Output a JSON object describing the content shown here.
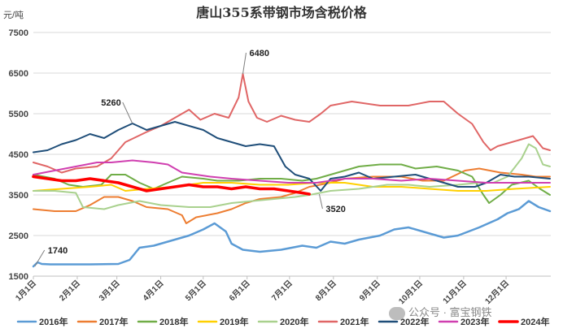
{
  "chart_data": {
    "type": "line",
    "title": "唐山355系带钢市场含税价格",
    "unit": "元/吨",
    "ylim": [
      1500,
      7500
    ],
    "yticks": [
      "1500",
      "2500",
      "3500",
      "4500",
      "5500",
      "6500",
      "7500"
    ],
    "categories": [
      "1月1日",
      "2月1日",
      "3月1日",
      "4月1日",
      "5月1日",
      "6月1日",
      "7月1日",
      "8月1日",
      "9月1日",
      "10月1日",
      "11月1日",
      "12月1日"
    ],
    "x_domain": [
      0,
      365
    ],
    "grid": true,
    "legend": "bottom",
    "annotations": [
      {
        "label": "1740",
        "x": 1,
        "y": 1740
      },
      {
        "label": "5260",
        "x": 70,
        "y": 5260
      },
      {
        "label": "6480",
        "x": 148,
        "y": 6480
      },
      {
        "label": "3520",
        "x": 202,
        "y": 3520
      }
    ],
    "series": [
      {
        "name": "2016年",
        "color": "#5b9bd5",
        "width": 2.5,
        "points": [
          [
            0,
            1740
          ],
          [
            3,
            1840
          ],
          [
            6,
            1800
          ],
          [
            12,
            1790
          ],
          [
            40,
            1790
          ],
          [
            60,
            1800
          ],
          [
            68,
            1900
          ],
          [
            75,
            2200
          ],
          [
            85,
            2250
          ],
          [
            100,
            2400
          ],
          [
            110,
            2500
          ],
          [
            120,
            2650
          ],
          [
            128,
            2800
          ],
          [
            136,
            2600
          ],
          [
            140,
            2300
          ],
          [
            148,
            2150
          ],
          [
            160,
            2100
          ],
          [
            175,
            2150
          ],
          [
            190,
            2250
          ],
          [
            200,
            2200
          ],
          [
            210,
            2350
          ],
          [
            220,
            2300
          ],
          [
            230,
            2400
          ],
          [
            245,
            2500
          ],
          [
            255,
            2650
          ],
          [
            265,
            2700
          ],
          [
            280,
            2550
          ],
          [
            290,
            2450
          ],
          [
            300,
            2500
          ],
          [
            315,
            2700
          ],
          [
            328,
            2900
          ],
          [
            335,
            3050
          ],
          [
            343,
            3150
          ],
          [
            350,
            3350
          ],
          [
            357,
            3200
          ],
          [
            365,
            3100
          ]
        ]
      },
      {
        "name": "2017年",
        "color": "#ed7d31",
        "width": 2,
        "points": [
          [
            0,
            3150
          ],
          [
            15,
            3100
          ],
          [
            30,
            3100
          ],
          [
            40,
            3250
          ],
          [
            50,
            3450
          ],
          [
            60,
            3450
          ],
          [
            70,
            3350
          ],
          [
            80,
            3200
          ],
          [
            95,
            3150
          ],
          [
            105,
            3000
          ],
          [
            108,
            2800
          ],
          [
            115,
            2950
          ],
          [
            130,
            3050
          ],
          [
            140,
            3150
          ],
          [
            150,
            3300
          ],
          [
            160,
            3400
          ],
          [
            175,
            3450
          ],
          [
            185,
            3550
          ],
          [
            195,
            3700
          ],
          [
            210,
            3800
          ],
          [
            220,
            3900
          ],
          [
            240,
            3950
          ],
          [
            260,
            3950
          ],
          [
            275,
            3850
          ],
          [
            290,
            3850
          ],
          [
            305,
            4100
          ],
          [
            315,
            4150
          ],
          [
            330,
            4050
          ],
          [
            345,
            4000
          ],
          [
            355,
            3950
          ],
          [
            365,
            3950
          ]
        ]
      },
      {
        "name": "2018年",
        "color": "#70ad47",
        "width": 2,
        "points": [
          [
            0,
            4000
          ],
          [
            15,
            3900
          ],
          [
            25,
            3750
          ],
          [
            35,
            3700
          ],
          [
            48,
            3750
          ],
          [
            55,
            4000
          ],
          [
            65,
            4000
          ],
          [
            75,
            3800
          ],
          [
            85,
            3650
          ],
          [
            95,
            3800
          ],
          [
            105,
            3950
          ],
          [
            120,
            3900
          ],
          [
            130,
            3850
          ],
          [
            145,
            3850
          ],
          [
            160,
            3900
          ],
          [
            175,
            3900
          ],
          [
            190,
            3850
          ],
          [
            200,
            3900
          ],
          [
            215,
            4050
          ],
          [
            230,
            4200
          ],
          [
            245,
            4250
          ],
          [
            260,
            4250
          ],
          [
            270,
            4150
          ],
          [
            285,
            4200
          ],
          [
            300,
            4100
          ],
          [
            310,
            3950
          ],
          [
            318,
            3500
          ],
          [
            322,
            3300
          ],
          [
            330,
            3500
          ],
          [
            338,
            3750
          ],
          [
            350,
            3850
          ],
          [
            358,
            3650
          ],
          [
            365,
            3500
          ]
        ]
      },
      {
        "name": "2019年",
        "color": "#ffd000",
        "width": 2,
        "points": [
          [
            0,
            3600
          ],
          [
            20,
            3650
          ],
          [
            40,
            3700
          ],
          [
            55,
            3750
          ],
          [
            65,
            3600
          ],
          [
            80,
            3650
          ],
          [
            100,
            3700
          ],
          [
            120,
            3800
          ],
          [
            140,
            3800
          ],
          [
            160,
            3750
          ],
          [
            180,
            3750
          ],
          [
            200,
            3800
          ],
          [
            220,
            3800
          ],
          [
            240,
            3700
          ],
          [
            260,
            3700
          ],
          [
            280,
            3650
          ],
          [
            300,
            3600
          ],
          [
            320,
            3600
          ],
          [
            340,
            3650
          ],
          [
            365,
            3700
          ]
        ]
      },
      {
        "name": "2020年",
        "color": "#a9d18e",
        "width": 2,
        "points": [
          [
            0,
            3600
          ],
          [
            15,
            3600
          ],
          [
            30,
            3550
          ],
          [
            35,
            3200
          ],
          [
            50,
            3150
          ],
          [
            60,
            3250
          ],
          [
            75,
            3350
          ],
          [
            90,
            3250
          ],
          [
            110,
            3200
          ],
          [
            125,
            3200
          ],
          [
            140,
            3300
          ],
          [
            155,
            3350
          ],
          [
            170,
            3400
          ],
          [
            185,
            3450
          ],
          [
            195,
            3500
          ],
          [
            210,
            3600
          ],
          [
            230,
            3650
          ],
          [
            250,
            3750
          ],
          [
            265,
            3750
          ],
          [
            280,
            3700
          ],
          [
            300,
            3750
          ],
          [
            315,
            3800
          ],
          [
            325,
            3800
          ],
          [
            335,
            3950
          ],
          [
            345,
            4400
          ],
          [
            350,
            4750
          ],
          [
            355,
            4650
          ],
          [
            360,
            4250
          ],
          [
            365,
            4200
          ]
        ]
      },
      {
        "name": "2021年",
        "color": "#e06666",
        "width": 2,
        "points": [
          [
            0,
            4300
          ],
          [
            10,
            4200
          ],
          [
            20,
            4050
          ],
          [
            30,
            4150
          ],
          [
            45,
            4200
          ],
          [
            55,
            4400
          ],
          [
            65,
            4800
          ],
          [
            80,
            5050
          ],
          [
            90,
            5200
          ],
          [
            100,
            5400
          ],
          [
            110,
            5600
          ],
          [
            118,
            5350
          ],
          [
            128,
            5500
          ],
          [
            138,
            5400
          ],
          [
            145,
            5900
          ],
          [
            148,
            6480
          ],
          [
            152,
            5800
          ],
          [
            158,
            5400
          ],
          [
            165,
            5300
          ],
          [
            175,
            5450
          ],
          [
            185,
            5350
          ],
          [
            195,
            5300
          ],
          [
            203,
            5500
          ],
          [
            210,
            5700
          ],
          [
            225,
            5800
          ],
          [
            245,
            5700
          ],
          [
            265,
            5700
          ],
          [
            280,
            5800
          ],
          [
            290,
            5800
          ],
          [
            300,
            5500
          ],
          [
            310,
            5250
          ],
          [
            318,
            4800
          ],
          [
            323,
            4600
          ],
          [
            328,
            4700
          ],
          [
            338,
            4800
          ],
          [
            348,
            4900
          ],
          [
            353,
            4950
          ],
          [
            360,
            4650
          ],
          [
            365,
            4600
          ]
        ]
      },
      {
        "name": "2022年",
        "color": "#1f4e79",
        "width": 2,
        "points": [
          [
            0,
            4550
          ],
          [
            10,
            4600
          ],
          [
            20,
            4750
          ],
          [
            30,
            4850
          ],
          [
            40,
            5000
          ],
          [
            50,
            4900
          ],
          [
            60,
            5100
          ],
          [
            70,
            5260
          ],
          [
            80,
            5100
          ],
          [
            90,
            5200
          ],
          [
            100,
            5300
          ],
          [
            110,
            5200
          ],
          [
            120,
            5100
          ],
          [
            130,
            4900
          ],
          [
            140,
            4800
          ],
          [
            150,
            4700
          ],
          [
            160,
            4750
          ],
          [
            170,
            4700
          ],
          [
            178,
            4200
          ],
          [
            185,
            4000
          ],
          [
            195,
            3900
          ],
          [
            203,
            3600
          ],
          [
            210,
            3900
          ],
          [
            220,
            3950
          ],
          [
            230,
            4050
          ],
          [
            240,
            3900
          ],
          [
            255,
            3950
          ],
          [
            270,
            4000
          ],
          [
            285,
            3850
          ],
          [
            300,
            3700
          ],
          [
            312,
            3700
          ],
          [
            320,
            3800
          ],
          [
            330,
            4000
          ],
          [
            340,
            3950
          ],
          [
            350,
            3950
          ],
          [
            365,
            3900
          ]
        ]
      },
      {
        "name": "2023年",
        "color": "#d03fb0",
        "width": 2,
        "points": [
          [
            0,
            4000
          ],
          [
            15,
            4100
          ],
          [
            30,
            4200
          ],
          [
            45,
            4300
          ],
          [
            55,
            4300
          ],
          [
            70,
            4350
          ],
          [
            85,
            4300
          ],
          [
            95,
            4250
          ],
          [
            105,
            4050
          ],
          [
            115,
            4000
          ],
          [
            125,
            3950
          ],
          [
            140,
            3900
          ],
          [
            160,
            3850
          ],
          [
            180,
            3800
          ],
          [
            200,
            3800
          ],
          [
            220,
            3900
          ],
          [
            240,
            3900
          ],
          [
            260,
            3850
          ],
          [
            280,
            3900
          ],
          [
            300,
            3850
          ],
          [
            320,
            3800
          ],
          [
            340,
            3800
          ],
          [
            365,
            3800
          ]
        ]
      },
      {
        "name": "2024年",
        "color": "#ff0000",
        "width": 3.6,
        "points": [
          [
            0,
            3950
          ],
          [
            10,
            3900
          ],
          [
            20,
            3850
          ],
          [
            30,
            3850
          ],
          [
            40,
            3900
          ],
          [
            50,
            3850
          ],
          [
            60,
            3800
          ],
          [
            70,
            3700
          ],
          [
            80,
            3600
          ],
          [
            90,
            3650
          ],
          [
            100,
            3700
          ],
          [
            110,
            3750
          ],
          [
            120,
            3700
          ],
          [
            130,
            3700
          ],
          [
            140,
            3650
          ],
          [
            150,
            3700
          ],
          [
            160,
            3650
          ],
          [
            170,
            3650
          ],
          [
            180,
            3600
          ],
          [
            190,
            3550
          ],
          [
            195,
            3520
          ]
        ]
      }
    ]
  }
}
